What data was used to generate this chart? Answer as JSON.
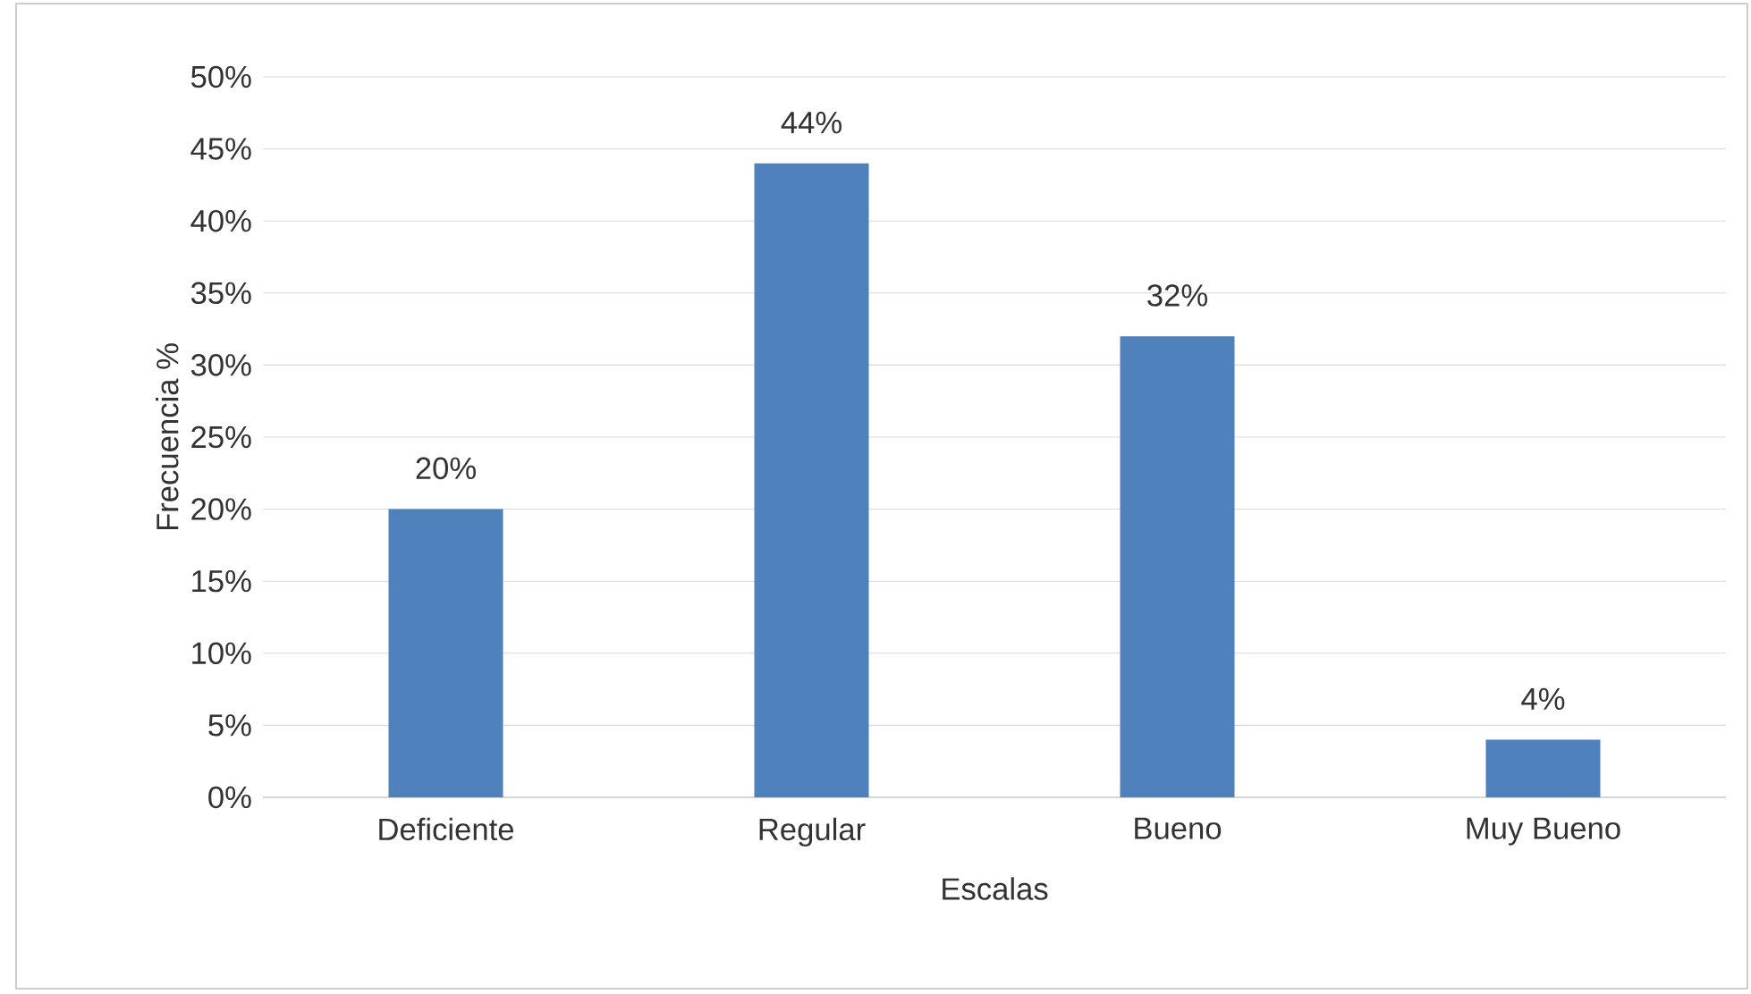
{
  "chart_data": {
    "type": "bar",
    "xlabel": "Escalas",
    "ylabel": "Frecuencia  %",
    "categories": [
      "Deficiente",
      "Regular",
      "Bueno",
      "Muy Bueno"
    ],
    "values": [
      20,
      44,
      32,
      4
    ],
    "value_labels": [
      "20%",
      "44%",
      "32%",
      "4%"
    ],
    "color": "#4f81bd",
    "ylim": [
      0,
      50
    ],
    "yticks": [
      {
        "value": 0,
        "label": "0%"
      },
      {
        "value": 5,
        "label": "5%"
      },
      {
        "value": 10,
        "label": "10%"
      },
      {
        "value": 15,
        "label": "15%"
      },
      {
        "value": 20,
        "label": "20%"
      },
      {
        "value": 25,
        "label": "25%"
      },
      {
        "value": 30,
        "label": "30%"
      },
      {
        "value": 35,
        "label": "35%"
      },
      {
        "value": 40,
        "label": "40%"
      },
      {
        "value": 45,
        "label": "45%"
      },
      {
        "value": 50,
        "label": "50%"
      }
    ],
    "grid": "y"
  }
}
